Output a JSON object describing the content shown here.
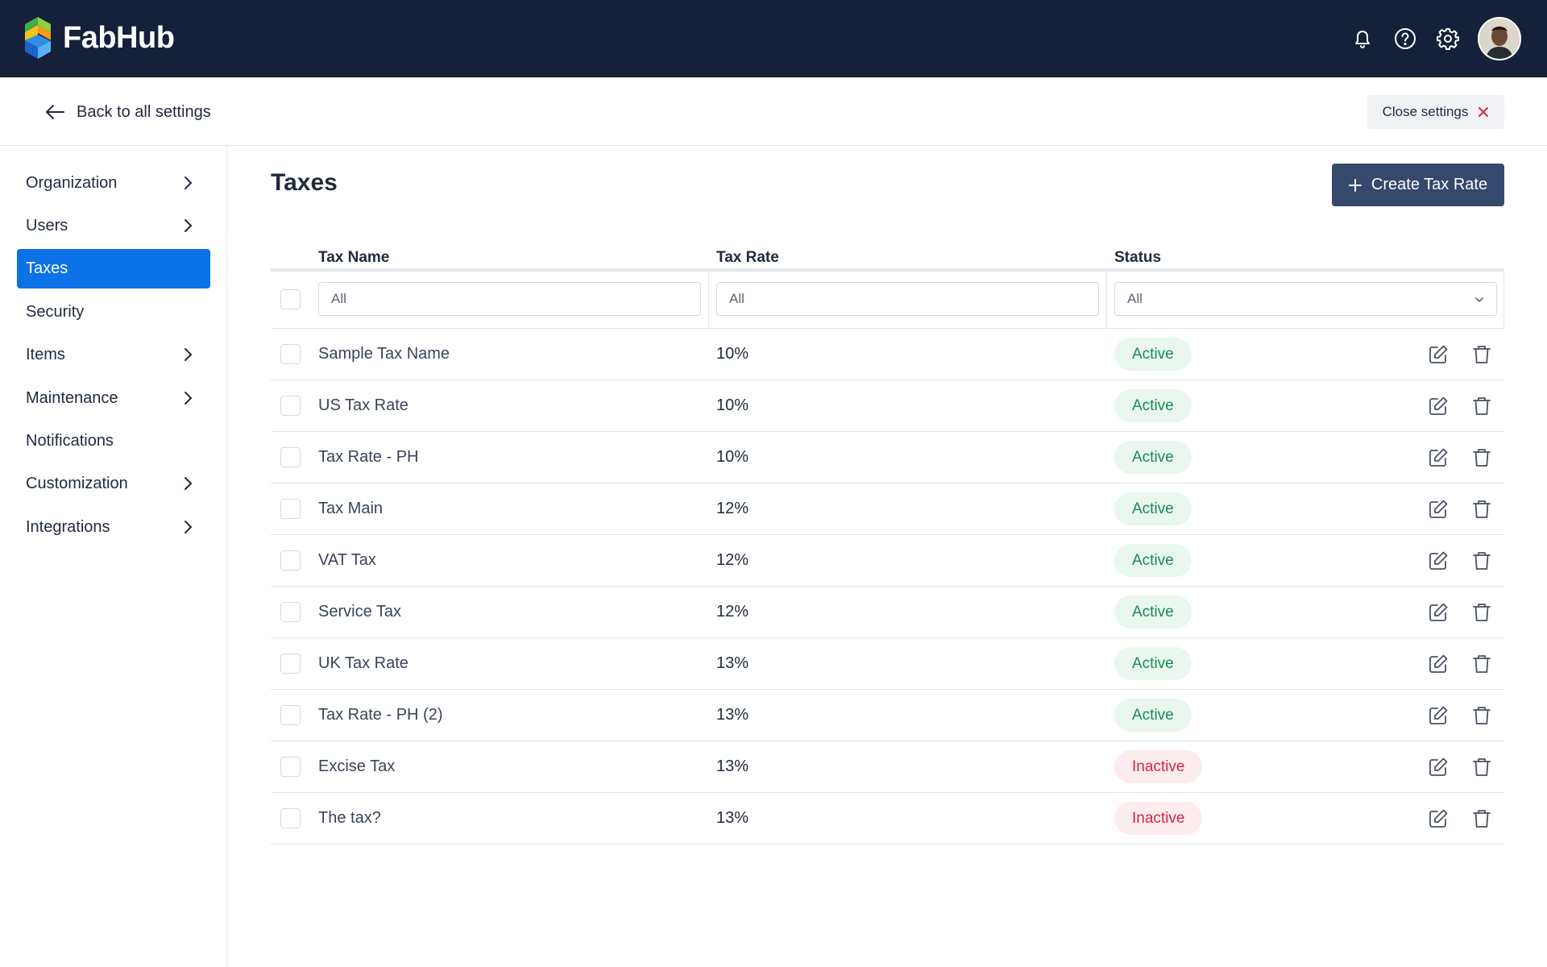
{
  "app": {
    "name": "FabHub"
  },
  "header": {
    "icons": [
      "bell-icon",
      "help-circle-icon",
      "gear-icon"
    ],
    "avatar": "user-avatar"
  },
  "subheader": {
    "back_label": "Back to all settings",
    "close_label": "Close settings"
  },
  "sidebar": {
    "items": [
      {
        "label": "Organization",
        "has_chevron": true,
        "active": false
      },
      {
        "label": "Users",
        "has_chevron": true,
        "active": false
      },
      {
        "label": "Taxes",
        "has_chevron": false,
        "active": true
      },
      {
        "label": "Security",
        "has_chevron": false,
        "active": false
      },
      {
        "label": "Items",
        "has_chevron": true,
        "active": false
      },
      {
        "label": "Maintenance",
        "has_chevron": true,
        "active": false
      },
      {
        "label": "Notifications",
        "has_chevron": false,
        "active": false
      },
      {
        "label": "Customization",
        "has_chevron": true,
        "active": false
      },
      {
        "label": "Integrations",
        "has_chevron": true,
        "active": false
      }
    ]
  },
  "main": {
    "title": "Taxes",
    "create_button_label": "Create Tax Rate",
    "table": {
      "columns": [
        "Tax Name",
        "Tax Rate",
        "Status"
      ],
      "filters": {
        "name_placeholder": "All",
        "rate_placeholder": "All",
        "status_selected": "All"
      },
      "rows": [
        {
          "name": "Sample Tax Name",
          "rate": "10%",
          "status": "Active"
        },
        {
          "name": "US Tax Rate",
          "rate": "10%",
          "status": "Active"
        },
        {
          "name": "Tax Rate - PH",
          "rate": "10%",
          "status": "Active"
        },
        {
          "name": "Tax Main",
          "rate": "12%",
          "status": "Active"
        },
        {
          "name": "VAT Tax",
          "rate": "12%",
          "status": "Active"
        },
        {
          "name": "Service Tax",
          "rate": "12%",
          "status": "Active"
        },
        {
          "name": "UK Tax Rate",
          "rate": "13%",
          "status": "Active"
        },
        {
          "name": "Tax Rate - PH (2)",
          "rate": "13%",
          "status": "Active"
        },
        {
          "name": "Excise Tax",
          "rate": "13%",
          "status": "Inactive"
        },
        {
          "name": "The tax?",
          "rate": "13%",
          "status": "Inactive"
        }
      ]
    }
  },
  "colors": {
    "topbar": "#15203a",
    "active_nav": "#0b72e7",
    "primary_button": "#34496b",
    "status_active": "#1a8a52",
    "status_inactive": "#d4283a"
  }
}
